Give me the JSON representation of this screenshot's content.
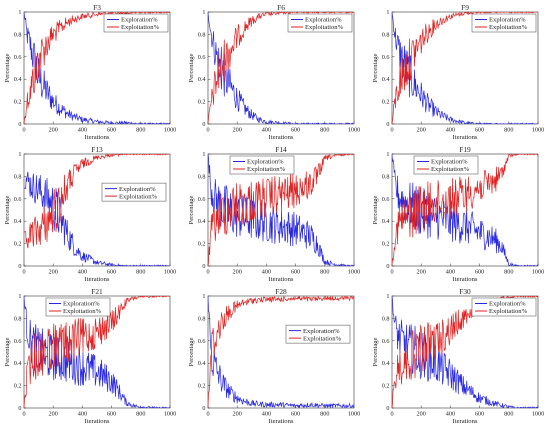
{
  "figure": {
    "background": "#ffffff",
    "exploration_color": "#2828e0",
    "exploitation_color": "#e02222"
  },
  "chart_data": [
    {
      "type": "line",
      "title": "F3",
      "xlabel": "Iterations",
      "ylabel": "Percentage",
      "xlim": [
        0,
        1000
      ],
      "ylim": [
        0,
        1
      ],
      "xticks": [
        0,
        200,
        400,
        600,
        800,
        1000
      ],
      "yticks": [
        0,
        0.2,
        0.4,
        0.6,
        0.8,
        1
      ],
      "legend": "top-right",
      "series": [
        {
          "name": "Exploration%",
          "x": [
            0,
            20,
            40,
            60,
            80,
            100,
            150,
            200,
            250,
            300,
            350,
            400,
            500,
            600,
            700,
            800,
            900,
            1000
          ],
          "y": [
            1.0,
            0.8,
            0.72,
            0.62,
            0.52,
            0.42,
            0.3,
            0.2,
            0.14,
            0.09,
            0.06,
            0.04,
            0.02,
            0.01,
            0.01,
            0.0,
            0.0,
            0.0
          ]
        },
        {
          "name": "Exploitation%",
          "x": [
            0,
            20,
            40,
            60,
            80,
            100,
            150,
            200,
            250,
            300,
            350,
            400,
            500,
            600,
            700,
            800,
            900,
            1000
          ],
          "y": [
            0.0,
            0.2,
            0.28,
            0.38,
            0.48,
            0.58,
            0.7,
            0.8,
            0.86,
            0.91,
            0.94,
            0.96,
            0.98,
            0.99,
            0.99,
            1.0,
            1.0,
            1.0
          ]
        }
      ]
    },
    {
      "type": "line",
      "title": "F6",
      "xlabel": "Iterations",
      "ylabel": "Percentage",
      "xlim": [
        0,
        1000
      ],
      "ylim": [
        0,
        1
      ],
      "xticks": [
        0,
        200,
        400,
        600,
        800,
        1000
      ],
      "yticks": [
        0,
        0.2,
        0.4,
        0.6,
        0.8,
        1
      ],
      "legend": "top-right",
      "series": [
        {
          "name": "Exploration%",
          "x": [
            0,
            20,
            50,
            80,
            100,
            150,
            200,
            250,
            300,
            350,
            400,
            500,
            600,
            700,
            800,
            900,
            1000
          ],
          "y": [
            1.0,
            0.82,
            0.65,
            0.52,
            0.46,
            0.34,
            0.23,
            0.14,
            0.08,
            0.04,
            0.02,
            0.01,
            0.0,
            0.0,
            0.0,
            0.0,
            0.0
          ]
        },
        {
          "name": "Exploitation%",
          "x": [
            0,
            20,
            50,
            80,
            100,
            150,
            200,
            250,
            300,
            350,
            400,
            500,
            600,
            700,
            800,
            900,
            1000
          ],
          "y": [
            0.0,
            0.18,
            0.35,
            0.48,
            0.54,
            0.66,
            0.77,
            0.86,
            0.92,
            0.96,
            0.98,
            0.99,
            1.0,
            1.0,
            1.0,
            1.0,
            1.0
          ]
        }
      ]
    },
    {
      "type": "line",
      "title": "F9",
      "xlabel": "Iterations",
      "ylabel": "Percentage",
      "xlim": [
        0,
        1000
      ],
      "ylim": [
        0,
        1
      ],
      "xticks": [
        0,
        200,
        400,
        600,
        800,
        1000
      ],
      "yticks": [
        0,
        0.2,
        0.4,
        0.6,
        0.8,
        1
      ],
      "legend": "top-right",
      "series": [
        {
          "name": "Exploration%",
          "x": [
            0,
            20,
            50,
            80,
            100,
            150,
            200,
            250,
            300,
            350,
            400,
            500,
            600,
            700,
            800,
            900,
            1000
          ],
          "y": [
            1.0,
            0.8,
            0.64,
            0.54,
            0.48,
            0.36,
            0.26,
            0.17,
            0.11,
            0.07,
            0.04,
            0.01,
            0.0,
            0.0,
            0.0,
            0.0,
            0.0
          ]
        },
        {
          "name": "Exploitation%",
          "x": [
            0,
            20,
            50,
            80,
            100,
            150,
            200,
            250,
            300,
            350,
            400,
            500,
            600,
            700,
            800,
            900,
            1000
          ],
          "y": [
            0.0,
            0.2,
            0.36,
            0.46,
            0.52,
            0.64,
            0.74,
            0.83,
            0.89,
            0.93,
            0.96,
            0.99,
            1.0,
            1.0,
            1.0,
            1.0,
            1.0
          ]
        }
      ]
    },
    {
      "type": "line",
      "title": "F13",
      "xlabel": "Iterations",
      "ylabel": "Percentage",
      "xlim": [
        0,
        1000
      ],
      "ylim": [
        0,
        1
      ],
      "xticks": [
        0,
        200,
        400,
        600,
        800,
        1000
      ],
      "yticks": [
        0,
        0.2,
        0.4,
        0.6,
        0.8,
        1
      ],
      "legend": "mid-right",
      "series": [
        {
          "name": "Exploration%",
          "x": [
            0,
            50,
            100,
            150,
            200,
            250,
            300,
            350,
            400,
            500,
            600,
            700,
            800,
            900,
            1000
          ],
          "y": [
            0.8,
            0.72,
            0.68,
            0.62,
            0.54,
            0.42,
            0.28,
            0.16,
            0.09,
            0.03,
            0.01,
            0.0,
            0.0,
            0.0,
            0.0
          ]
        },
        {
          "name": "Exploitation%",
          "x": [
            0,
            50,
            100,
            150,
            200,
            250,
            300,
            350,
            400,
            500,
            600,
            700,
            800,
            900,
            1000
          ],
          "y": [
            0.2,
            0.28,
            0.32,
            0.38,
            0.46,
            0.58,
            0.72,
            0.84,
            0.91,
            0.97,
            0.99,
            1.0,
            1.0,
            1.0,
            1.0
          ]
        }
      ]
    },
    {
      "type": "line",
      "title": "F14",
      "xlabel": "Iterations",
      "ylabel": "Percentage",
      "xlim": [
        0,
        1000
      ],
      "ylim": [
        0,
        1
      ],
      "xticks": [
        0,
        200,
        400,
        600,
        800,
        1000
      ],
      "yticks": [
        0,
        0.2,
        0.4,
        0.6,
        0.8,
        1
      ],
      "legend": "top-left",
      "series": [
        {
          "name": "Exploration%",
          "x": [
            0,
            20,
            50,
            100,
            150,
            200,
            300,
            400,
            500,
            600,
            700,
            750,
            780,
            800,
            850,
            900,
            950,
            1000
          ],
          "y": [
            1.0,
            0.7,
            0.6,
            0.52,
            0.48,
            0.45,
            0.42,
            0.39,
            0.36,
            0.33,
            0.27,
            0.2,
            0.1,
            0.04,
            0.02,
            0.01,
            0.0,
            0.0
          ]
        },
        {
          "name": "Exploitation%",
          "x": [
            0,
            20,
            50,
            100,
            150,
            200,
            300,
            400,
            500,
            600,
            700,
            750,
            780,
            800,
            850,
            900,
            950,
            1000
          ],
          "y": [
            0.0,
            0.3,
            0.4,
            0.48,
            0.52,
            0.55,
            0.58,
            0.61,
            0.64,
            0.67,
            0.73,
            0.8,
            0.9,
            0.96,
            0.98,
            0.99,
            1.0,
            1.0
          ]
        }
      ]
    },
    {
      "type": "line",
      "title": "F19",
      "xlabel": "Iterations",
      "ylabel": "Percentage",
      "xlim": [
        0,
        1000
      ],
      "ylim": [
        0,
        1
      ],
      "xticks": [
        0,
        200,
        400,
        600,
        800,
        1000
      ],
      "yticks": [
        0,
        0.2,
        0.4,
        0.6,
        0.8,
        1
      ],
      "legend": "top-left",
      "series": [
        {
          "name": "Exploration%",
          "x": [
            0,
            20,
            50,
            100,
            150,
            200,
            300,
            400,
            500,
            600,
            700,
            750,
            780,
            800,
            850,
            900,
            1000
          ],
          "y": [
            1.0,
            0.72,
            0.62,
            0.56,
            0.52,
            0.48,
            0.44,
            0.4,
            0.36,
            0.3,
            0.24,
            0.18,
            0.08,
            0.02,
            0.0,
            0.0,
            0.0
          ]
        },
        {
          "name": "Exploitation%",
          "x": [
            0,
            20,
            50,
            100,
            150,
            200,
            300,
            400,
            500,
            600,
            700,
            750,
            780,
            800,
            850,
            900,
            1000
          ],
          "y": [
            0.0,
            0.28,
            0.38,
            0.44,
            0.48,
            0.52,
            0.56,
            0.6,
            0.64,
            0.7,
            0.76,
            0.82,
            0.92,
            0.98,
            1.0,
            1.0,
            1.0
          ]
        }
      ]
    },
    {
      "type": "line",
      "title": "F21",
      "xlabel": "Iterations",
      "ylabel": "Percentage",
      "xlim": [
        0,
        1000
      ],
      "ylim": [
        0,
        1
      ],
      "xticks": [
        0,
        200,
        400,
        600,
        800,
        1000
      ],
      "yticks": [
        0,
        0.2,
        0.4,
        0.6,
        0.8,
        1
      ],
      "legend": "top-left",
      "series": [
        {
          "name": "Exploration%",
          "x": [
            0,
            20,
            50,
            100,
            150,
            200,
            300,
            400,
            500,
            600,
            650,
            700,
            750,
            800,
            900,
            1000
          ],
          "y": [
            1.0,
            0.72,
            0.58,
            0.5,
            0.47,
            0.45,
            0.41,
            0.37,
            0.32,
            0.24,
            0.15,
            0.05,
            0.02,
            0.01,
            0.0,
            0.0
          ]
        },
        {
          "name": "Exploitation%",
          "x": [
            0,
            20,
            50,
            100,
            150,
            200,
            300,
            400,
            500,
            600,
            650,
            700,
            750,
            800,
            900,
            1000
          ],
          "y": [
            0.0,
            0.28,
            0.42,
            0.5,
            0.53,
            0.55,
            0.59,
            0.63,
            0.68,
            0.76,
            0.85,
            0.95,
            0.98,
            0.99,
            1.0,
            1.0
          ]
        }
      ]
    },
    {
      "type": "line",
      "title": "F28",
      "xlabel": "Iterations",
      "ylabel": "Percentage",
      "xlim": [
        0,
        1000
      ],
      "ylim": [
        0,
        1
      ],
      "xticks": [
        0,
        200,
        400,
        600,
        800,
        1000
      ],
      "yticks": [
        0,
        0.2,
        0.4,
        0.6,
        0.8,
        1
      ],
      "legend": "mid-right",
      "series": [
        {
          "name": "Exploration%",
          "x": [
            0,
            20,
            50,
            100,
            150,
            200,
            250,
            300,
            400,
            500,
            600,
            700,
            800,
            900,
            1000
          ],
          "y": [
            1.0,
            0.5,
            0.36,
            0.22,
            0.14,
            0.09,
            0.06,
            0.04,
            0.03,
            0.03,
            0.02,
            0.03,
            0.02,
            0.02,
            0.02
          ]
        },
        {
          "name": "Exploitation%",
          "x": [
            0,
            20,
            50,
            100,
            150,
            200,
            250,
            300,
            400,
            500,
            600,
            700,
            800,
            900,
            1000
          ],
          "y": [
            0.0,
            0.5,
            0.64,
            0.78,
            0.86,
            0.91,
            0.94,
            0.96,
            0.97,
            0.97,
            0.98,
            0.97,
            0.98,
            0.98,
            0.98
          ]
        }
      ]
    },
    {
      "type": "line",
      "title": "F30",
      "xlabel": "Iterations",
      "ylabel": "Percentage",
      "xlim": [
        0,
        1000
      ],
      "ylim": [
        0,
        1
      ],
      "xticks": [
        0,
        200,
        400,
        600,
        800,
        1000
      ],
      "yticks": [
        0,
        0.2,
        0.4,
        0.6,
        0.8,
        1
      ],
      "legend": "top-right",
      "series": [
        {
          "name": "Exploration%",
          "x": [
            0,
            20,
            50,
            100,
            150,
            200,
            300,
            400,
            500,
            600,
            700,
            800,
            850,
            900,
            1000
          ],
          "y": [
            1.0,
            0.72,
            0.62,
            0.56,
            0.52,
            0.48,
            0.4,
            0.3,
            0.18,
            0.09,
            0.04,
            0.01,
            0.0,
            0.0,
            0.0
          ]
        },
        {
          "name": "Exploitation%",
          "x": [
            0,
            20,
            50,
            100,
            150,
            200,
            300,
            400,
            500,
            600,
            700,
            800,
            850,
            900,
            1000
          ],
          "y": [
            0.0,
            0.28,
            0.38,
            0.44,
            0.48,
            0.52,
            0.6,
            0.7,
            0.82,
            0.91,
            0.96,
            0.99,
            1.0,
            1.0,
            1.0
          ]
        }
      ]
    }
  ]
}
